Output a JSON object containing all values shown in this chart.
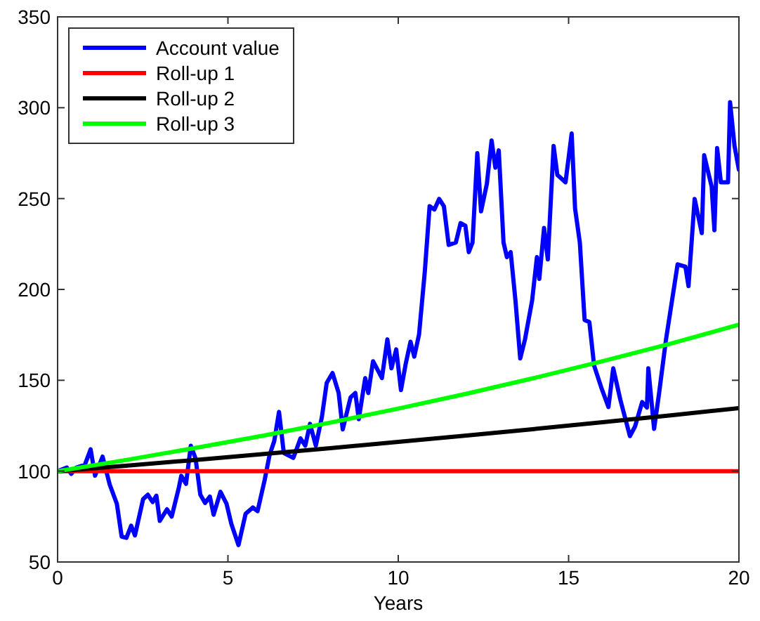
{
  "chart_data": {
    "type": "line",
    "xlabel": "Years",
    "xlim": [
      0,
      20
    ],
    "ylim": [
      50,
      350
    ],
    "xticks": [
      0,
      5,
      10,
      15,
      20
    ],
    "yticks": [
      50,
      100,
      150,
      200,
      250,
      300,
      350
    ],
    "grid": false,
    "legend": "top left",
    "line_style": "solid",
    "marker": "none",
    "series": [
      {
        "name": "Account value",
        "color": "#0000ff",
        "x": [
          0,
          0.27,
          0.4,
          0.55,
          0.8,
          0.97,
          1.1,
          1.32,
          1.53,
          1.74,
          1.88,
          2.02,
          2.16,
          2.27,
          2.51,
          2.65,
          2.79,
          2.9,
          3.0,
          3.21,
          3.35,
          3.56,
          3.63,
          3.77,
          3.91,
          4.05,
          4.19,
          4.33,
          4.47,
          4.58,
          4.78,
          4.96,
          5.1,
          5.31,
          5.52,
          5.73,
          5.87,
          6.08,
          6.22,
          6.36,
          6.5,
          6.64,
          6.78,
          6.92,
          7.13,
          7.27,
          7.41,
          7.58,
          7.76,
          7.9,
          8.07,
          8.25,
          8.37,
          8.6,
          8.74,
          8.84,
          9.03,
          9.12,
          9.26,
          9.52,
          9.68,
          9.8,
          9.94,
          10.08,
          10.22,
          10.36,
          10.47,
          10.61,
          10.78,
          10.92,
          11.06,
          11.2,
          11.34,
          11.48,
          11.69,
          11.83,
          11.97,
          12.07,
          12.18,
          12.32,
          12.43,
          12.6,
          12.74,
          12.85,
          12.95,
          13.09,
          13.19,
          13.3,
          13.44,
          13.58,
          13.72,
          13.93,
          14.07,
          14.14,
          14.28,
          14.39,
          14.56,
          14.67,
          14.91,
          15.09,
          15.19,
          15.33,
          15.47,
          15.61,
          15.75,
          15.96,
          16.17,
          16.31,
          16.52,
          16.8,
          16.95,
          17.16,
          17.3,
          17.34,
          17.51,
          17.65,
          17.86,
          18.2,
          18.43,
          18.52,
          18.7,
          18.91,
          18.98,
          19.2,
          19.28,
          19.36,
          19.47,
          19.68,
          19.74,
          19.87,
          20
        ],
        "values": [
          100,
          102,
          98.5,
          102,
          103.5,
          112,
          97.5,
          108,
          92.6,
          82,
          64,
          63.3,
          70,
          64.6,
          84.6,
          87,
          83,
          86.5,
          72.6,
          79,
          75,
          91,
          97.4,
          93,
          114,
          107,
          87,
          82.5,
          86,
          76,
          88.6,
          82,
          71,
          59.3,
          76.6,
          80,
          78,
          95.3,
          108.6,
          116.6,
          132.6,
          110,
          108.6,
          107.3,
          118,
          114,
          126,
          114,
          130,
          148.6,
          154,
          143,
          123,
          140.6,
          143,
          128.6,
          151.2,
          143,
          160.5,
          151.2,
          172.5,
          156.6,
          167,
          144.6,
          159.2,
          171.2,
          163,
          175.2,
          210,
          245.8,
          244,
          249.8,
          245.8,
          224.5,
          225.8,
          236.5,
          235,
          220.5,
          225.8,
          275,
          243,
          258,
          282,
          267,
          276.5,
          225.8,
          217.8,
          220.5,
          193.9,
          162,
          172.5,
          194,
          217.8,
          205.8,
          233.8,
          216.5,
          279,
          263,
          259,
          285.8,
          244.5,
          225.8,
          183.2,
          182,
          158,
          146,
          135.3,
          156.6,
          139.2,
          119.3,
          124.6,
          138,
          135,
          156.6,
          123.3,
          142,
          172.5,
          213.8,
          212.5,
          201.8,
          249.8,
          231,
          273.8,
          256.5,
          232.6,
          277.8,
          259,
          259,
          303,
          279,
          265.8
        ]
      },
      {
        "name": "Roll-up 1",
        "color": "#ff0000",
        "x": [
          0,
          20
        ],
        "values": [
          100,
          100
        ]
      },
      {
        "name": "Roll-up 2",
        "color": "#000000",
        "x": [
          0,
          2,
          4,
          6,
          8,
          10,
          12,
          14,
          16,
          18,
          20
        ],
        "values": [
          100,
          103.0,
          106.1,
          109.3,
          112.6,
          116.1,
          119.6,
          123.2,
          126.9,
          130.7,
          134.7
        ]
      },
      {
        "name": "Roll-up 3",
        "color": "#00ff00",
        "x": [
          0,
          2,
          4,
          6,
          8,
          10,
          12,
          14,
          16,
          18,
          20
        ],
        "values": [
          100,
          106.1,
          112.6,
          119.4,
          126.7,
          134.4,
          142.6,
          151.3,
          160.5,
          170.2,
          180.6
        ]
      }
    ]
  }
}
